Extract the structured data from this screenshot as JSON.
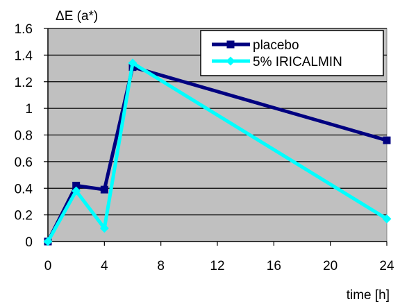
{
  "chart_data": {
    "type": "line",
    "ylabel": "ΔE (a*)",
    "xlabel": "time [h]",
    "x": [
      0,
      2,
      4,
      6,
      24
    ],
    "xticks": [
      0,
      4,
      8,
      12,
      16,
      20,
      24
    ],
    "xlim": [
      0,
      24
    ],
    "yticks": [
      0,
      0.2,
      0.4,
      0.6,
      0.8,
      1,
      1.2,
      1.4,
      1.6
    ],
    "ytick_labels": [
      "0",
      "0.2",
      "0.4",
      "0.6",
      "0.8",
      "1",
      "1.2",
      "1.4",
      "1.6"
    ],
    "ylim": [
      0,
      1.6
    ],
    "grid": true,
    "legend_position": "top-right",
    "plot_background": "#c0c0c0",
    "series": [
      {
        "name": "placebo",
        "values": [
          0,
          0.42,
          0.39,
          1.31,
          0.76
        ],
        "color": "#000080",
        "marker": "square"
      },
      {
        "name": "5% IRICALMIN",
        "values": [
          0,
          0.38,
          0.1,
          1.34,
          0.17
        ],
        "color": "#00ffff",
        "marker": "diamond"
      }
    ]
  }
}
